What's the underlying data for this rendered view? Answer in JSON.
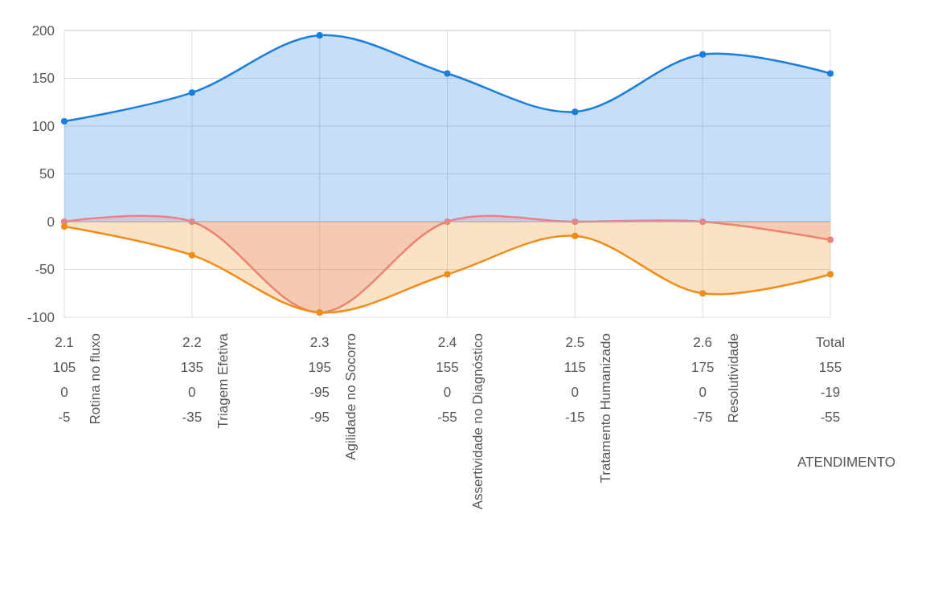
{
  "chart_data": {
    "type": "area",
    "categories": [
      "2.1",
      "2.2",
      "2.3",
      "2.4",
      "2.5",
      "2.6",
      "Total"
    ],
    "series": [
      {
        "color": "#1a7ee0",
        "values": [
          105,
          135,
          195,
          155,
          115,
          175,
          155
        ]
      },
      {
        "color": "#e8808e",
        "values": [
          0,
          0,
          -95,
          0,
          0,
          0,
          -19
        ]
      },
      {
        "color": "#f08c18",
        "values": [
          -5,
          -35,
          -95,
          -55,
          -15,
          -75,
          -55
        ]
      }
    ],
    "annotations": [
      "Rotina no fluxo",
      "Triagem Efetiva",
      "Agilidade no Socorro",
      "Assertividade no Diagnóstico",
      "Tratamento Humanizado",
      "Resolutividade",
      "ATENDIMENTO"
    ],
    "ylim": [
      -100,
      200
    ],
    "yticks": [
      -100,
      -50,
      0,
      50,
      100,
      150,
      200
    ],
    "grid": true,
    "marker": "circle",
    "data_labels": true
  }
}
